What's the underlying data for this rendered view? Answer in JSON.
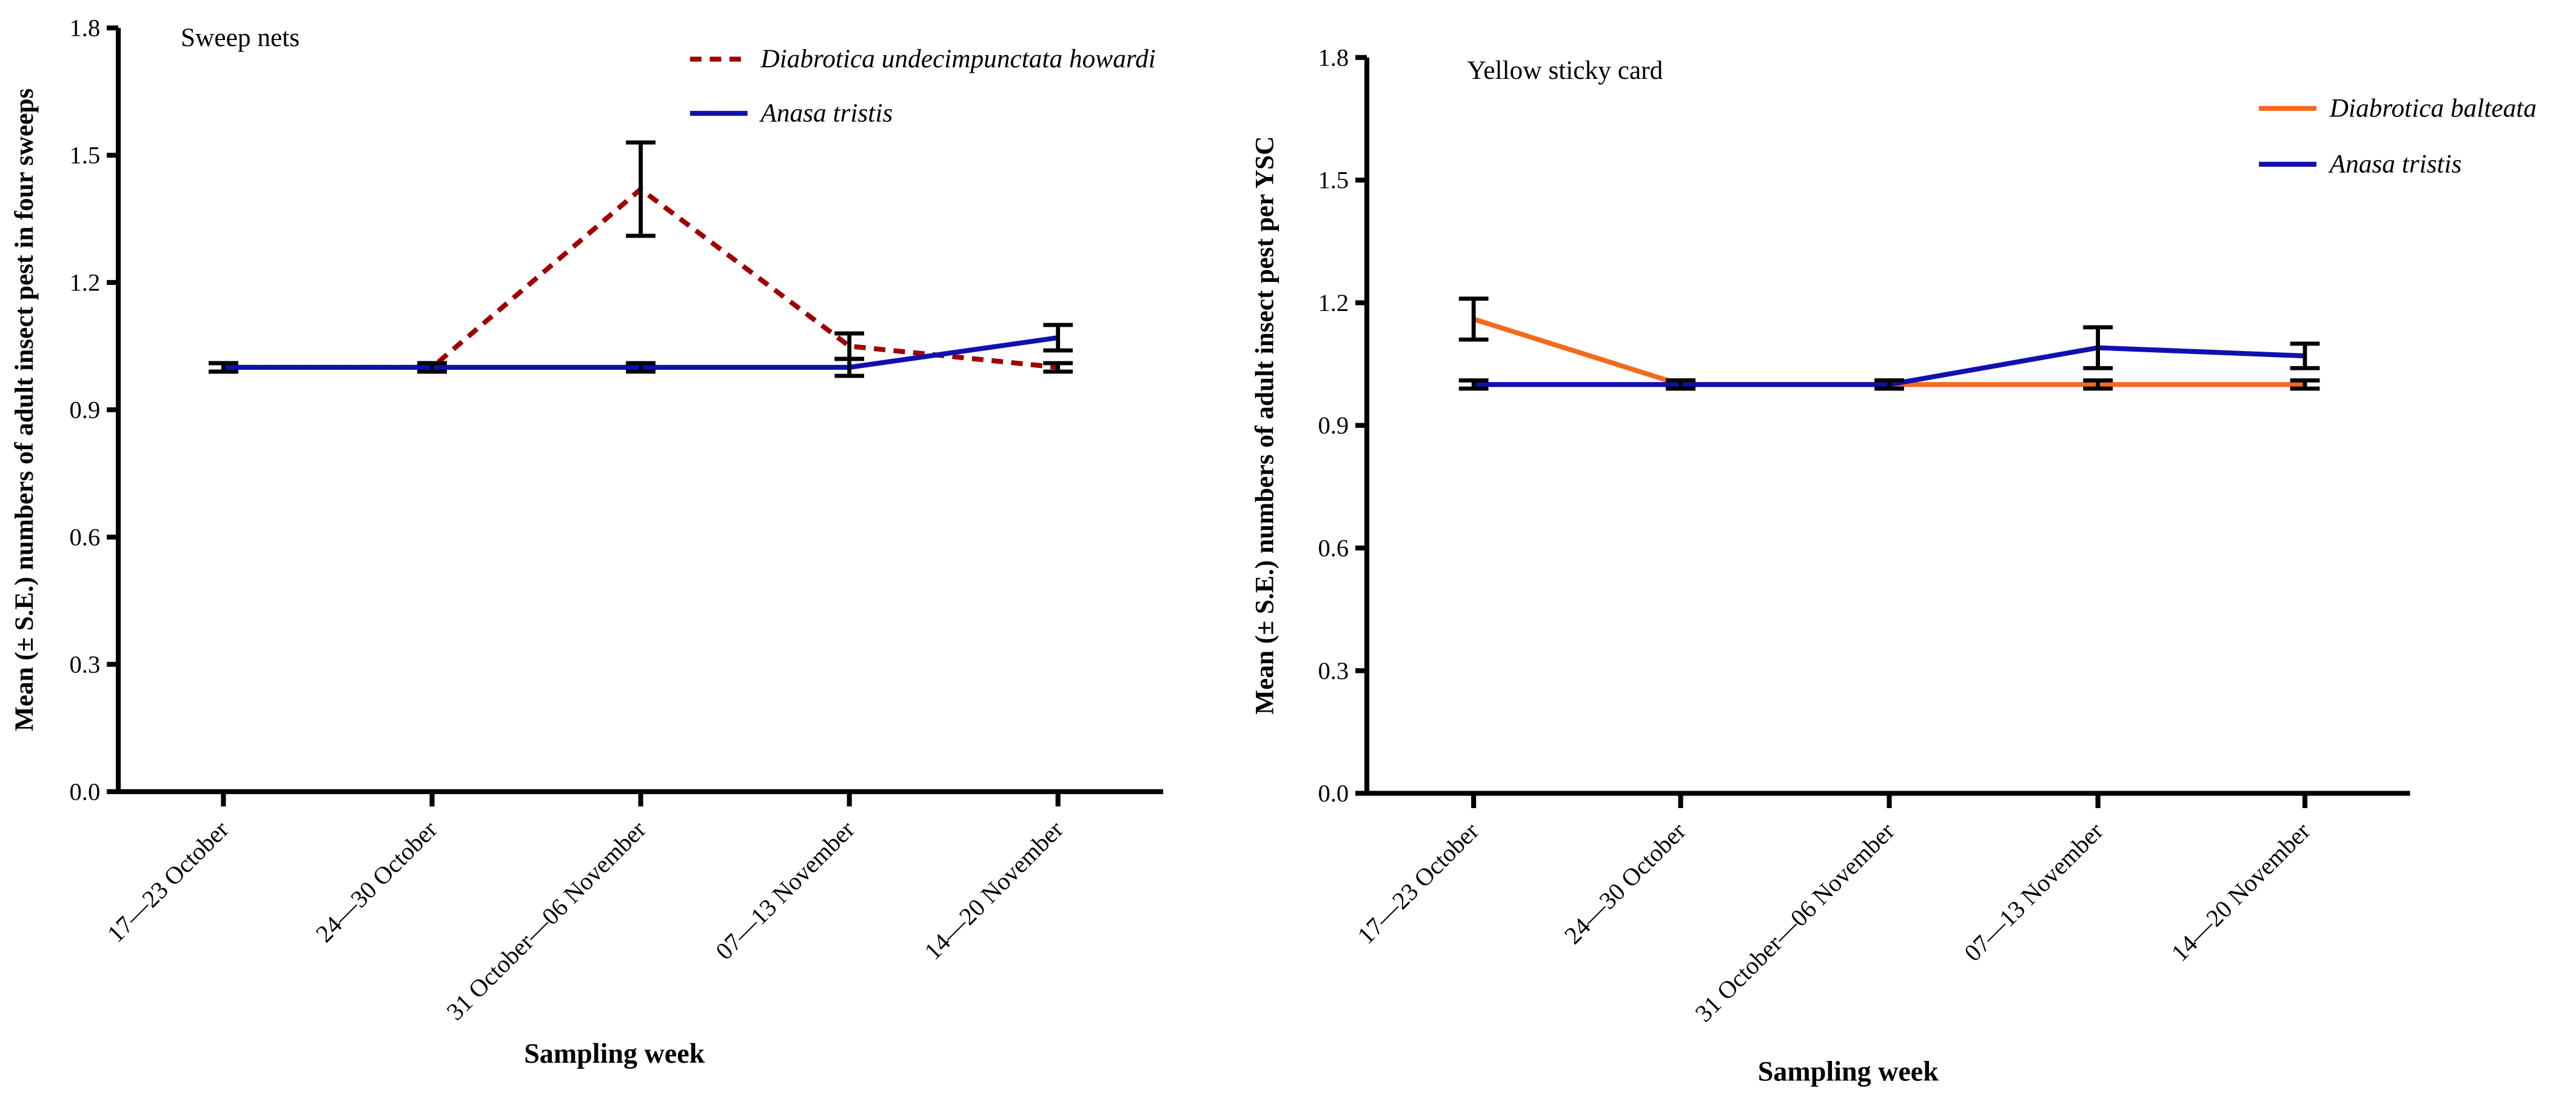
{
  "chart_data": [
    {
      "type": "line",
      "title": "Sweep nets",
      "x_label": "Sampling week",
      "y_label": "Mean (± S.E.) numbers of adult insect pest in four sweeps",
      "categories": [
        "17—23 October",
        "24—30 October",
        "31 October—06 November",
        "07—13 November",
        "14—20 November"
      ],
      "series": [
        {
          "name": "Diabrotica undecimpunctata howardi",
          "color": "#a00000",
          "dashed": true,
          "values": [
            1.0,
            1.0,
            1.42,
            1.05,
            1.0
          ],
          "errors": [
            0.01,
            0.01,
            0.11,
            0.03,
            0.01
          ]
        },
        {
          "name": "Anasa tristis",
          "color": "#1010b0",
          "dashed": false,
          "values": [
            1.0,
            1.0,
            1.0,
            1.0,
            1.07
          ],
          "errors": [
            0.01,
            0.01,
            0.01,
            0.02,
            0.03
          ]
        }
      ],
      "ylim": [
        0,
        1.8
      ],
      "yticks": [
        {
          "value": 0,
          "label": "0.0"
        },
        0.3,
        0.6,
        0.9,
        1.2,
        1.5,
        1.8
      ],
      "legend": "top-right"
    },
    {
      "type": "line",
      "title": "Yellow sticky card",
      "x_label": "Sampling week",
      "y_label": "Mean (± S.E.) numbers of adult insect pest per YSC",
      "categories": [
        "17—23 October",
        "24—30 October",
        "31 October—06 November",
        "07—13 November",
        "14—20 November"
      ],
      "series": [
        {
          "name": "Diabrotica balteata",
          "color": "#f26b1d",
          "dashed": false,
          "values": [
            1.16,
            1.0,
            1.0,
            1.0,
            1.0
          ],
          "errors": [
            0.05,
            0.01,
            0.01,
            0.01,
            0.01
          ]
        },
        {
          "name": "Anasa tristis",
          "color": "#1010b0",
          "dashed": false,
          "values": [
            1.0,
            1.0,
            1.0,
            1.09,
            1.07
          ],
          "errors": [
            0.01,
            0.01,
            0.01,
            0.05,
            0.03
          ]
        }
      ],
      "ylim": [
        0,
        1.8
      ],
      "yticks": [
        {
          "value": 0,
          "label": "0.0"
        },
        0.3,
        0.6,
        0.9,
        1.2,
        1.5,
        1.8
      ],
      "legend": "top-right"
    }
  ]
}
